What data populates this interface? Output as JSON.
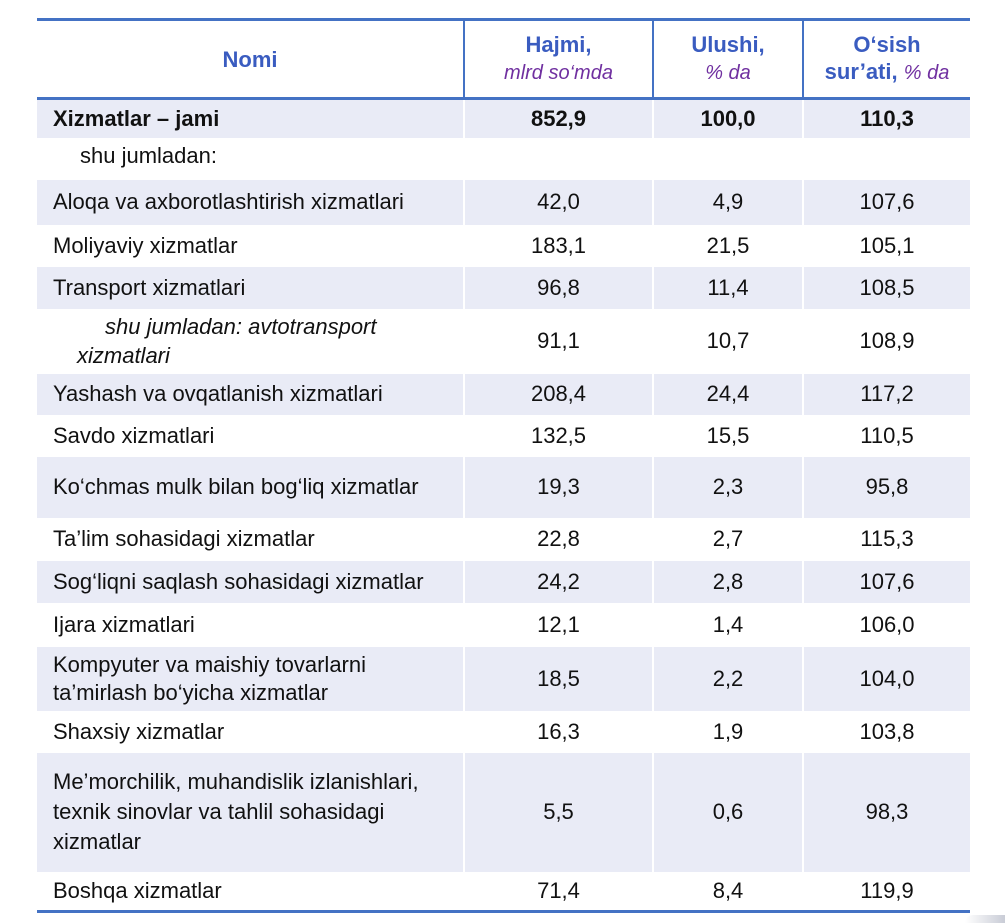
{
  "header": {
    "col_name": "Nomi",
    "col_volume": "Hajmi,",
    "col_volume_unit": "mlrd so‘mda",
    "col_share": "Ulushi,",
    "col_share_unit": "% da",
    "col_growth_1": "O‘sish",
    "col_growth_2": "sur’ati,",
    "col_growth_unit": "% da"
  },
  "rows": [
    {
      "name": "Xizmatlar – jami",
      "volume": "852,9",
      "share": "100,0",
      "growth": "110,3"
    },
    {
      "name": "shu jumladan:",
      "volume": "",
      "share": "",
      "growth": ""
    },
    {
      "name": "Aloqa va axborotlashtirish xizmatlari",
      "volume": "42,0",
      "share": "4,9",
      "growth": "107,6"
    },
    {
      "name": "Moliyaviy xizmatlar",
      "volume": "183,1",
      "share": "21,5",
      "growth": "105,1"
    },
    {
      "name": "Transport xizmatlari",
      "volume": "96,8",
      "share": "11,4",
      "growth": "108,5"
    },
    {
      "name_line1": "shu jumladan: avtotransport",
      "name_line2": "xizmatlari",
      "volume": "91,1",
      "share": "10,7",
      "growth": "108,9"
    },
    {
      "name": "Yashash va ovqatlanish xizmatlari",
      "volume": "208,4",
      "share": "24,4",
      "growth": "117,2"
    },
    {
      "name": "Savdo xizmatlari",
      "volume": "132,5",
      "share": "15,5",
      "growth": "110,5"
    },
    {
      "name": "Ko‘chmas mulk bilan bog‘liq xizmatlar",
      "volume": "19,3",
      "share": "2,3",
      "growth": "95,8"
    },
    {
      "name": "Ta’lim sohasidagi xizmatlar",
      "volume": "22,8",
      "share": "2,7",
      "growth": "115,3"
    },
    {
      "name": "Sog‘liqni saqlash sohasidagi xizmatlar",
      "volume": "24,2",
      "share": "2,8",
      "growth": "107,6"
    },
    {
      "name": "Ijara xizmatlari",
      "volume": "12,1",
      "share": "1,4",
      "growth": "106,0"
    },
    {
      "name_line1": "Kompyuter va maishiy tovarlarni",
      "name_line2": "ta’mirlash bo‘yicha xizmatlar",
      "volume": "18,5",
      "share": "2,2",
      "growth": "104,0"
    },
    {
      "name": "Shaxsiy xizmatlar",
      "volume": "16,3",
      "share": "1,9",
      "growth": "103,8"
    },
    {
      "name_line1": "Me’morchilik, muhandislik izlanishlari,",
      "name_line2": "texnik  sinovlar va tahlil sohasidagi",
      "name_line3": "xizmatlar",
      "volume": "5,5",
      "share": "0,6",
      "growth": "98,3"
    },
    {
      "name": "Boshqa xizmatlar",
      "volume": "71,4",
      "share": "8,4",
      "growth": "119,9"
    }
  ],
  "colors": {
    "header_text": "#3a5cc0",
    "unit_text": "#7030a0",
    "rule": "#4472c4",
    "shade": "#e9ebf6"
  }
}
